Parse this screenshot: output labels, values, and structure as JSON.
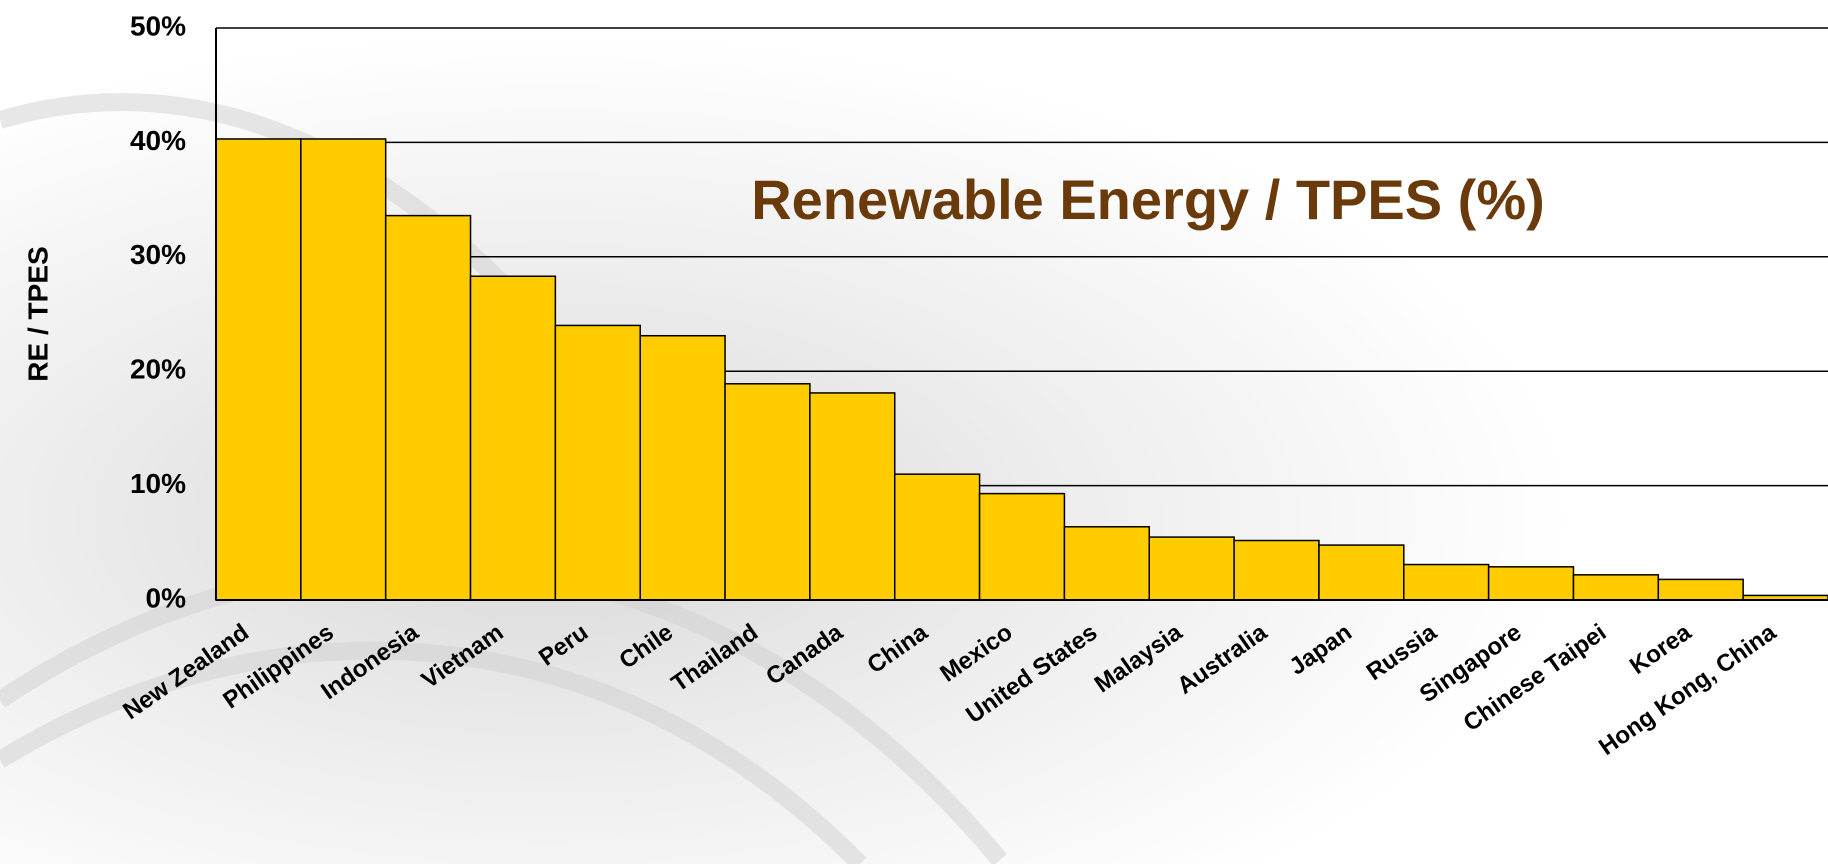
{
  "chart_data": {
    "type": "bar",
    "title": "Renewable Energy / TPES (%)",
    "y_label": "RE / TPES",
    "categories": [
      "New Zealand",
      "Philippines",
      "Indonesia",
      "Vietnam",
      "Peru",
      "Chile",
      "Thailand",
      "Canada",
      "China",
      "Mexico",
      "United States",
      "Malaysia",
      "Australia",
      "Japan",
      "Russia",
      "Singapore",
      "Chinese Taipei",
      "Korea",
      "Hong Kong, China"
    ],
    "values": [
      40.3,
      40.3,
      33.6,
      28.3,
      24.0,
      23.1,
      18.9,
      18.1,
      11.0,
      9.3,
      6.4,
      5.5,
      5.2,
      4.8,
      3.1,
      2.9,
      2.2,
      1.8,
      0.4
    ],
    "color": "#ffcc00",
    "ylim": [
      0,
      50
    ],
    "yticks": [
      {
        "value": 0,
        "label": "0%"
      },
      {
        "value": 10,
        "label": "10%"
      },
      {
        "value": 20,
        "label": "20%"
      },
      {
        "value": 30,
        "label": "30%"
      },
      {
        "value": 40,
        "label": "40%"
      },
      {
        "value": 50,
        "label": "50%"
      }
    ],
    "grid": true
  }
}
